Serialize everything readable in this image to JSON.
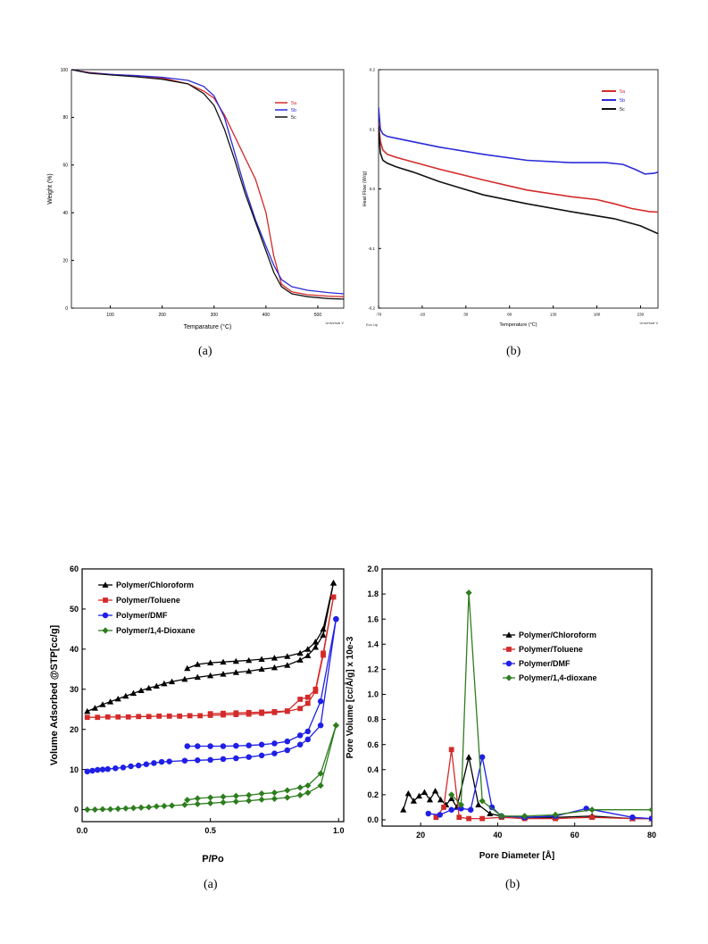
{
  "chart_data": [
    {
      "type": "line",
      "panel_label": "(a)",
      "title": "",
      "xlabel": "Temparature (°C)",
      "ylabel": "Weight (%)",
      "footer_note": "Universal V",
      "xlim": [
        25,
        550
      ],
      "ylim": [
        0,
        100
      ],
      "xticks": [
        100,
        200,
        300,
        400,
        500
      ],
      "yticks": [
        0,
        20,
        40,
        60,
        80,
        100
      ],
      "legend_position": "top-right",
      "series": [
        {
          "name": "5a",
          "color": "#d42a2a",
          "x": [
            25,
            60,
            100,
            150,
            200,
            250,
            280,
            300,
            320,
            340,
            360,
            380,
            400,
            415,
            430,
            450,
            480,
            520,
            550
          ],
          "y": [
            100,
            98.8,
            98,
            97.5,
            96.5,
            94,
            91,
            88,
            81,
            72,
            63,
            54,
            40,
            22,
            10,
            6.8,
            5.6,
            5,
            4.8
          ]
        },
        {
          "name": "5b",
          "color": "#2b2bd6",
          "x": [
            25,
            60,
            100,
            150,
            200,
            250,
            280,
            300,
            320,
            340,
            360,
            380,
            400,
            415,
            430,
            450,
            480,
            520,
            550
          ],
          "y": [
            100,
            98.6,
            98,
            97.5,
            96.8,
            95.5,
            93,
            89,
            80,
            65,
            50,
            37,
            26,
            18,
            12,
            9,
            7.5,
            6.5,
            6
          ]
        },
        {
          "name": "5c",
          "color": "#111111",
          "x": [
            25,
            60,
            100,
            150,
            200,
            250,
            280,
            300,
            320,
            340,
            360,
            380,
            400,
            415,
            430,
            450,
            480,
            520,
            550
          ],
          "y": [
            100,
            98.5,
            97.8,
            97,
            96,
            94,
            90,
            85,
            75,
            62,
            48,
            36,
            24,
            15,
            9,
            6,
            4.8,
            4,
            3.8
          ]
        }
      ]
    },
    {
      "type": "line",
      "panel_label": "(b)",
      "title": "",
      "xlabel": "Temperature (°C)",
      "ylabel": "Heat Flow (W/g)",
      "footer_note": "Universal V",
      "corner_note": "Exo Up",
      "xlim": [
        -70,
        250
      ],
      "ylim": [
        -0.2,
        0.2
      ],
      "xticks": [
        -70,
        -20,
        30,
        80,
        130,
        180,
        230
      ],
      "yticks": [
        -0.2,
        -0.1,
        0.0,
        0.1,
        0.2
      ],
      "legend_position": "top-right",
      "series": [
        {
          "name": "5a",
          "color": "#d42a2a",
          "x": [
            -70,
            -68,
            -65,
            -60,
            -50,
            -30,
            0,
            50,
            100,
            150,
            180,
            200,
            220,
            240,
            250
          ],
          "y": [
            0.11,
            0.08,
            0.065,
            0.058,
            0.053,
            0.045,
            0.033,
            0.015,
            -0.002,
            -0.013,
            -0.018,
            -0.025,
            -0.033,
            -0.038,
            -0.039
          ]
        },
        {
          "name": "5b",
          "color": "#2b2bd6",
          "x": [
            -70,
            -68,
            -65,
            -60,
            -50,
            -30,
            0,
            50,
            100,
            150,
            190,
            210,
            225,
            235,
            245,
            250
          ],
          "y": [
            0.137,
            0.1,
            0.092,
            0.088,
            0.085,
            0.079,
            0.07,
            0.058,
            0.048,
            0.044,
            0.044,
            0.041,
            0.032,
            0.025,
            0.026,
            0.028
          ]
        },
        {
          "name": "5c",
          "color": "#111111",
          "x": [
            -70,
            -68,
            -65,
            -60,
            -50,
            -30,
            0,
            50,
            100,
            150,
            200,
            230,
            250
          ],
          "y": [
            0.105,
            0.06,
            0.048,
            0.043,
            0.037,
            0.028,
            0.012,
            -0.01,
            -0.025,
            -0.038,
            -0.05,
            -0.062,
            -0.075
          ]
        }
      ]
    },
    {
      "type": "line",
      "panel_label": "(a)",
      "title": "",
      "xlabel": "P/Po",
      "ylabel": "Volume Adsorbed @STP[cc/g]",
      "xlim": [
        0,
        1.02
      ],
      "ylim": [
        -3,
        60
      ],
      "xticks": [
        0.0,
        0.5,
        1.0
      ],
      "yticks": [
        0,
        10,
        20,
        30,
        40,
        50,
        60
      ],
      "legend_position": "top-left",
      "series": [
        {
          "name": "Polymer/Chloroform",
          "color": "#000000",
          "marker": "triangle",
          "x": [
            0.02,
            0.05,
            0.08,
            0.11,
            0.14,
            0.17,
            0.2,
            0.23,
            0.26,
            0.29,
            0.32,
            0.35,
            0.4,
            0.45,
            0.5,
            0.55,
            0.6,
            0.65,
            0.7,
            0.75,
            0.8,
            0.85,
            0.88,
            0.91,
            0.94,
            0.98
          ],
          "y": [
            24.5,
            25.3,
            26.2,
            26.9,
            27.6,
            28.3,
            29.0,
            29.7,
            30.3,
            30.8,
            31.4,
            31.9,
            32.5,
            33.0,
            33.4,
            33.8,
            34.2,
            34.5,
            35.0,
            35.4,
            36.0,
            37.3,
            38.4,
            40.5,
            43.5,
            56.5
          ]
        },
        {
          "name": "Polymer/Chloroform desorption",
          "color": "#000000",
          "marker": "triangle",
          "legend": false,
          "x": [
            0.98,
            0.94,
            0.91,
            0.88,
            0.85,
            0.8,
            0.75,
            0.7,
            0.65,
            0.6,
            0.55,
            0.5,
            0.45,
            0.41
          ],
          "y": [
            56.5,
            45.0,
            41.8,
            40.0,
            39.0,
            38.2,
            37.8,
            37.5,
            37.2,
            37.0,
            36.8,
            36.6,
            36.2,
            35.2
          ]
        },
        {
          "name": "Polymer/Toluene",
          "color": "#d42a2a",
          "marker": "square",
          "x": [
            0.02,
            0.06,
            0.1,
            0.14,
            0.18,
            0.22,
            0.26,
            0.3,
            0.34,
            0.38,
            0.42,
            0.46,
            0.5,
            0.55,
            0.6,
            0.65,
            0.7,
            0.75,
            0.8,
            0.85,
            0.88,
            0.91,
            0.94,
            0.98
          ],
          "y": [
            23.0,
            23.0,
            23.1,
            23.1,
            23.1,
            23.2,
            23.2,
            23.3,
            23.3,
            23.3,
            23.4,
            23.4,
            23.5,
            23.6,
            23.7,
            23.8,
            24.0,
            24.2,
            24.5,
            25.2,
            26.5,
            29.5,
            38.5,
            53.0
          ]
        },
        {
          "name": "Polymer/Toluene desorption",
          "color": "#d42a2a",
          "marker": "square",
          "legend": false,
          "x": [
            0.98,
            0.94,
            0.91,
            0.88,
            0.85,
            0.8,
            0.75,
            0.7,
            0.65,
            0.6,
            0.55,
            0.5
          ],
          "y": [
            53.0,
            39.0,
            30.0,
            28.0,
            27.5,
            24.6,
            24.4,
            24.3,
            24.2,
            24.1,
            24.0,
            23.9
          ]
        },
        {
          "name": "Polymer/DMF",
          "color": "#1f1fe6",
          "marker": "circle",
          "x": [
            0.02,
            0.04,
            0.06,
            0.08,
            0.1,
            0.13,
            0.16,
            0.19,
            0.22,
            0.25,
            0.28,
            0.31,
            0.34,
            0.4,
            0.45,
            0.5,
            0.55,
            0.6,
            0.65,
            0.7,
            0.75,
            0.8,
            0.85,
            0.88,
            0.93,
            0.99
          ],
          "y": [
            9.5,
            9.7,
            9.9,
            10.0,
            10.1,
            10.3,
            10.5,
            10.8,
            11.0,
            11.3,
            11.6,
            11.9,
            12.0,
            12.2,
            12.3,
            12.4,
            12.6,
            12.8,
            13.1,
            13.5,
            14.0,
            14.8,
            16.2,
            17.5,
            21.0,
            47.5
          ]
        },
        {
          "name": "Polymer/DMF desorption",
          "color": "#1f1fe6",
          "marker": "circle",
          "legend": false,
          "x": [
            0.99,
            0.93,
            0.88,
            0.85,
            0.8,
            0.75,
            0.7,
            0.65,
            0.6,
            0.55,
            0.5,
            0.45,
            0.41
          ],
          "y": [
            47.5,
            27.0,
            19.5,
            18.5,
            17.0,
            16.5,
            16.2,
            16.0,
            15.9,
            15.8,
            15.8,
            15.8,
            15.8
          ]
        },
        {
          "name": "Polymer/1,4-Dioxane",
          "color": "#2e7d1e",
          "marker": "diamond",
          "x": [
            0.02,
            0.05,
            0.08,
            0.11,
            0.14,
            0.17,
            0.2,
            0.23,
            0.26,
            0.29,
            0.32,
            0.35,
            0.4,
            0.45,
            0.5,
            0.55,
            0.6,
            0.65,
            0.7,
            0.75,
            0.8,
            0.85,
            0.88,
            0.93,
            0.99
          ],
          "y": [
            0.0,
            0.0,
            0.1,
            0.1,
            0.2,
            0.3,
            0.4,
            0.5,
            0.6,
            0.8,
            0.9,
            1.0,
            1.2,
            1.4,
            1.6,
            1.8,
            2.0,
            2.2,
            2.5,
            2.7,
            3.0,
            3.6,
            4.2,
            6.0,
            21.0
          ]
        },
        {
          "name": "Polymer/1,4-Dioxane desorption",
          "color": "#2e7d1e",
          "marker": "diamond",
          "legend": false,
          "x": [
            0.99,
            0.93,
            0.88,
            0.85,
            0.8,
            0.75,
            0.7,
            0.65,
            0.6,
            0.55,
            0.5,
            0.45,
            0.41
          ],
          "y": [
            21.0,
            9.0,
            6.0,
            5.5,
            4.8,
            4.2,
            4.0,
            3.6,
            3.4,
            3.2,
            3.0,
            2.8,
            2.4
          ]
        }
      ]
    },
    {
      "type": "line",
      "panel_label": "(b)",
      "title": "",
      "xlabel": "Pore Diameter [Å]",
      "ylabel": "Pore Volume [cc/Å/g] x 10e-3",
      "xlim": [
        10,
        80
      ],
      "ylim": [
        -0.05,
        2.0
      ],
      "xticks": [
        20,
        40,
        60,
        80
      ],
      "yticks": [
        0.0,
        0.2,
        0.4,
        0.6,
        0.8,
        1.0,
        1.2,
        1.4,
        1.6,
        1.8,
        2.0
      ],
      "legend_position": "right",
      "series": [
        {
          "name": "Polymer/Chloroform",
          "color": "#000000",
          "marker": "triangle",
          "x": [
            15.5,
            16.8,
            18.2,
            19.6,
            21.0,
            22.4,
            23.8,
            25.2,
            26.6,
            28.0,
            29.4,
            32.5,
            35.0,
            38.0,
            41.0,
            47.0,
            55.0,
            64.5,
            75.0,
            80.0
          ],
          "y": [
            0.08,
            0.21,
            0.15,
            0.19,
            0.22,
            0.16,
            0.23,
            0.16,
            0.12,
            0.17,
            0.1,
            0.5,
            0.12,
            0.05,
            0.03,
            0.02,
            0.02,
            0.03,
            0.01,
            0.01
          ]
        },
        {
          "name": "Polymer/Toluene",
          "color": "#d42a2a",
          "marker": "square",
          "x": [
            24.0,
            26.0,
            28.0,
            30.0,
            32.5,
            36.0,
            41.0,
            47.0,
            55.0,
            64.5,
            75.0,
            80.0
          ],
          "y": [
            0.02,
            0.1,
            0.56,
            0.02,
            0.01,
            0.01,
            0.02,
            0.01,
            0.01,
            0.02,
            0.01,
            0.01
          ]
        },
        {
          "name": "Polymer/DMF",
          "color": "#1f1fe6",
          "marker": "circle",
          "x": [
            22.0,
            25.0,
            28.0,
            30.5,
            33.0,
            36.0,
            38.5,
            41.0,
            47.0,
            55.0,
            63.0,
            75.0,
            80.0
          ],
          "y": [
            0.05,
            0.04,
            0.08,
            0.09,
            0.08,
            0.5,
            0.1,
            0.03,
            0.02,
            0.03,
            0.09,
            0.02,
            0.01
          ]
        },
        {
          "name": "Polymer/1,4-dioxane",
          "color": "#2e7d1e",
          "marker": "diamond",
          "x": [
            28.0,
            30.5,
            32.5,
            36.0,
            41.0,
            47.0,
            55.0,
            64.5,
            80.0
          ],
          "y": [
            0.2,
            0.12,
            1.81,
            0.15,
            0.03,
            0.03,
            0.04,
            0.08,
            0.08
          ]
        }
      ]
    }
  ]
}
